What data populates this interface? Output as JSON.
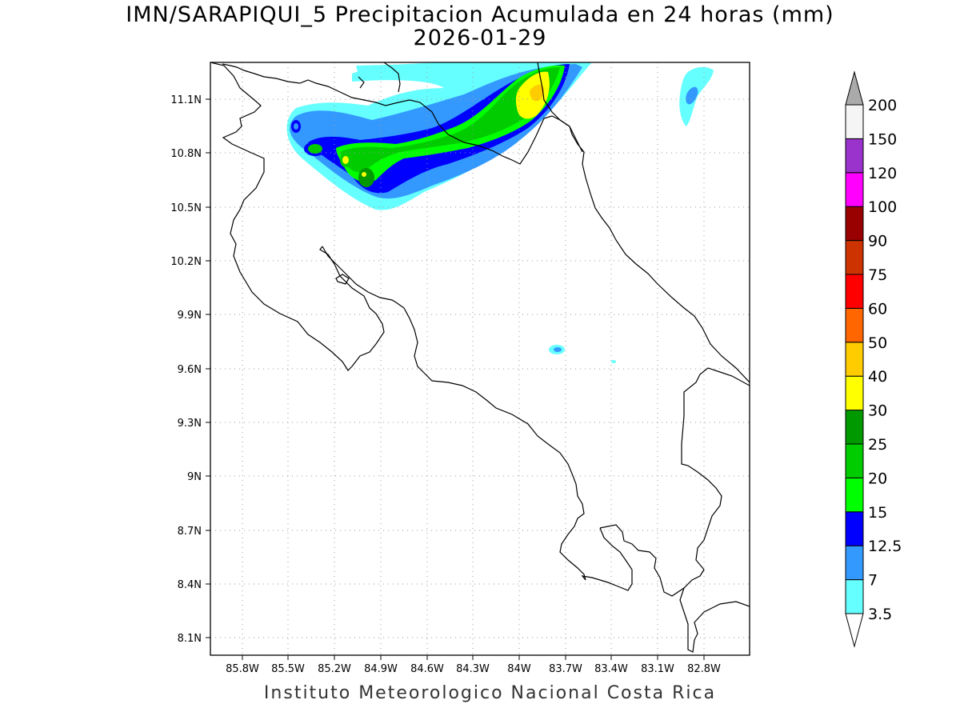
{
  "title": {
    "line1": "IMN/SARAPIQUI_5 Precipitacion Acumulada en 24 horas (mm)",
    "line2": "2026-01-29"
  },
  "footer": "Instituto Meteorologico Nacional Costa Rica",
  "map": {
    "region": "Costa Rica",
    "lon_range": [
      -86.0,
      -82.6
    ],
    "lat_range": [
      8.0,
      11.3
    ],
    "x_ticks": [
      "85.8W",
      "85.5W",
      "85.2W",
      "84.9W",
      "84.6W",
      "84.3W",
      "84W",
      "83.7W",
      "83.4W",
      "83.1W",
      "82.8W"
    ],
    "y_ticks": [
      "11.1N",
      "10.8N",
      "10.5N",
      "10.2N",
      "9.9N",
      "9.6N",
      "9.3N",
      "9N",
      "8.7N",
      "8.4N",
      "8.1N"
    ],
    "grid": "dotted"
  },
  "colorbar": {
    "levels": [
      "3.5",
      "7",
      "12.5",
      "15",
      "20",
      "25",
      "30",
      "40",
      "50",
      "60",
      "75",
      "90",
      "100",
      "120",
      "150",
      "200"
    ],
    "colors": [
      "#66ffff",
      "#3399ff",
      "#0000ff",
      "#00ff00",
      "#00cc00",
      "#009900",
      "#ffff00",
      "#ffcc00",
      "#ff6600",
      "#ff0000",
      "#cc3300",
      "#990000",
      "#ff00ff",
      "#9933cc",
      "#f5f5f5",
      "#aaaaaa"
    ]
  }
}
